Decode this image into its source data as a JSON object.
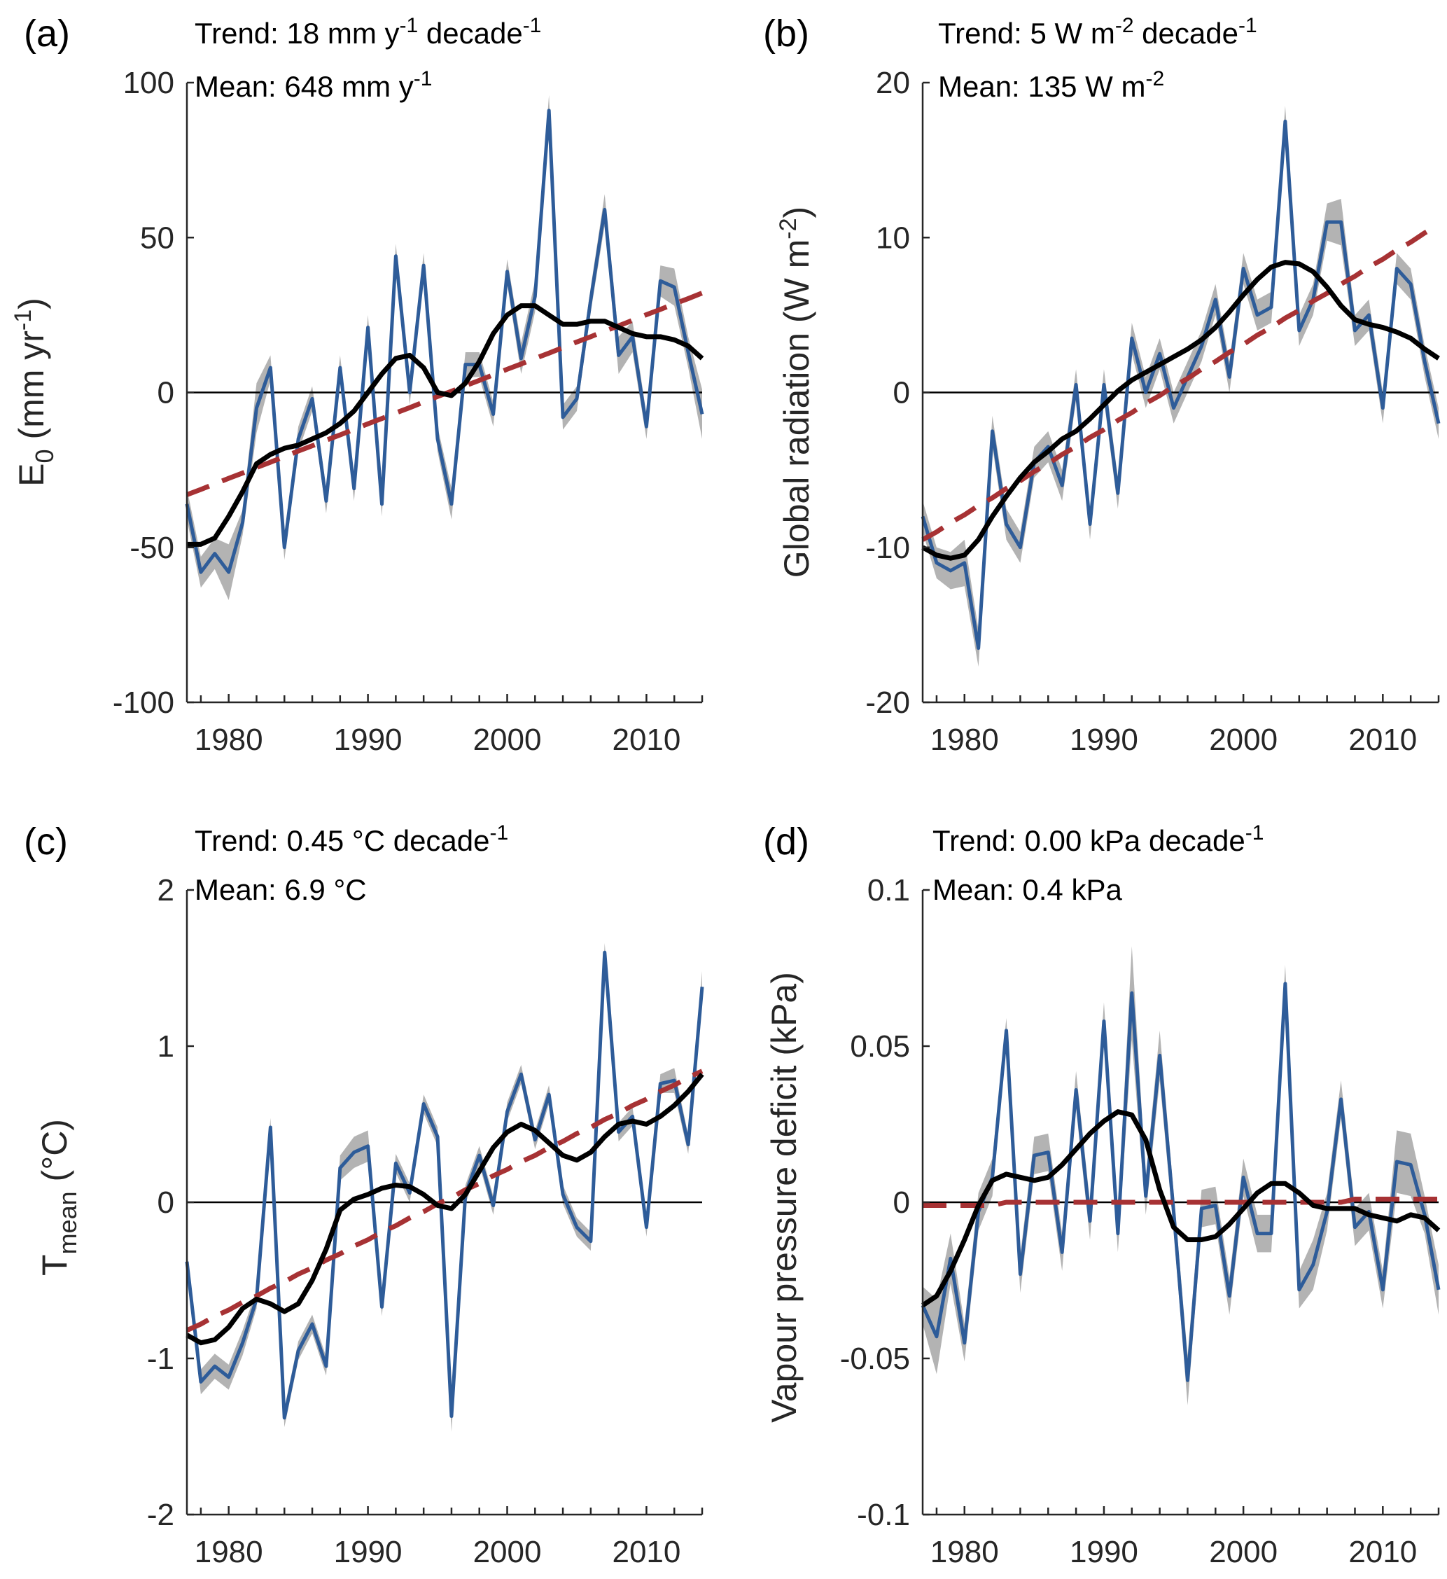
{
  "chart_data": [
    {
      "type": "line",
      "panel_label": "(a)",
      "trend_label": "Trend:",
      "trend_value": "18 mm y",
      "trend_sup1": "-1",
      "trend_mid": " decade",
      "trend_sup2": "-1",
      "mean_label": "Mean:",
      "mean_value": "648 mm y",
      "mean_sup": "-1",
      "ylabel_main": "E",
      "ylabel_sub": "0",
      "ylabel_rest": " (mm yr",
      "ylabel_sup": "-1",
      "ylabel_end": ")",
      "ylim": [
        -100,
        100
      ],
      "yticks": [
        -100,
        -50,
        0,
        50,
        100
      ],
      "ytick_labels": [
        "-100",
        "-50",
        "0",
        "50",
        "100"
      ],
      "xlim": [
        1977,
        2014
      ],
      "xticks": [
        1980,
        1990,
        2000,
        2010
      ],
      "xtick_labels": [
        "1980",
        "1990",
        "2000",
        "2010"
      ],
      "x": [
        1977,
        1978,
        1979,
        1980,
        1981,
        1982,
        1983,
        1984,
        1985,
        1986,
        1987,
        1988,
        1989,
        1990,
        1991,
        1992,
        1993,
        1994,
        1995,
        1996,
        1997,
        1998,
        1999,
        2000,
        2001,
        2002,
        2003,
        2004,
        2005,
        2006,
        2007,
        2008,
        2009,
        2010,
        2011,
        2012,
        2013,
        2014
      ],
      "series": [
        {
          "name": "annual anomaly",
          "values": [
            -36,
            -58,
            -52,
            -58,
            -42,
            -5,
            8,
            -50,
            -15,
            -2,
            -35,
            8,
            -31,
            21,
            -36,
            44,
            0,
            41,
            -15,
            -36,
            9,
            9,
            -7,
            39,
            11,
            31,
            91,
            -8,
            -2,
            30,
            59,
            12,
            18,
            -11,
            36,
            34,
            13,
            -7
          ]
        },
        {
          "name": "uncertainty band half-width",
          "values": [
            5,
            5,
            5,
            9,
            4,
            8,
            4,
            4,
            4,
            4,
            4,
            4,
            4,
            4,
            4,
            4,
            4,
            4,
            4,
            5,
            4,
            4,
            4,
            4,
            5,
            5,
            5,
            4,
            4,
            4,
            5,
            6,
            5,
            4,
            5,
            6,
            5,
            8
          ]
        },
        {
          "name": "smoothed",
          "values": [
            -49,
            -49,
            -47,
            -40,
            -32,
            -23,
            -20,
            -18,
            -17,
            -15,
            -13,
            -10,
            -6,
            0,
            6,
            11,
            12,
            8,
            0,
            -1,
            3,
            10,
            19,
            25,
            28,
            28,
            25,
            22,
            22,
            23,
            23,
            21,
            19,
            18,
            18,
            17,
            15,
            11
          ]
        },
        {
          "name": "linear trend",
          "values": [
            -33,
            -31.3,
            -29.5,
            -27.7,
            -26,
            -24.2,
            -22.5,
            -20.7,
            -18.9,
            -17.2,
            -15.4,
            -13.7,
            -11.9,
            -10.1,
            -8.4,
            -6.6,
            -4.9,
            -3.1,
            -1.3,
            0.4,
            2.2,
            3.9,
            5.7,
            7.5,
            9.2,
            11,
            12.7,
            14.5,
            16.3,
            18,
            19.8,
            21.5,
            23.3,
            25.1,
            26.8,
            28.6,
            30.3,
            32.1
          ]
        }
      ]
    },
    {
      "type": "line",
      "panel_label": "(b)",
      "trend_label": "Trend:",
      "trend_value": "5 W m",
      "trend_sup1": "-2",
      "trend_mid": " decade",
      "trend_sup2": "-1",
      "mean_label": "Mean:",
      "mean_value": "135 W m",
      "mean_sup": "-2",
      "ylabel_main": "Global radiation (W m",
      "ylabel_sub": "",
      "ylabel_rest": "",
      "ylabel_sup": "-2",
      "ylabel_end": ")",
      "ylim": [
        -20,
        20
      ],
      "yticks": [
        -20,
        -10,
        0,
        10,
        20
      ],
      "ytick_labels": [
        "-20",
        "-10",
        "0",
        "10",
        "20"
      ],
      "xlim": [
        1977,
        2014
      ],
      "xticks": [
        1980,
        1990,
        2000,
        2010
      ],
      "xtick_labels": [
        "1980",
        "1990",
        "2000",
        "2010"
      ],
      "x": [
        1977,
        1978,
        1979,
        1980,
        1981,
        1982,
        1983,
        1984,
        1985,
        1986,
        1987,
        1988,
        1989,
        1990,
        1991,
        1992,
        1993,
        1994,
        1995,
        1996,
        1997,
        1998,
        1999,
        2000,
        2001,
        2002,
        2003,
        2004,
        2005,
        2006,
        2007,
        2008,
        2009,
        2010,
        2011,
        2012,
        2013,
        2014
      ],
      "series": [
        {
          "name": "annual anomaly",
          "values": [
            -8,
            -11,
            -11.5,
            -11,
            -16.5,
            -2.5,
            -8.5,
            -10,
            -4.5,
            -3.5,
            -6,
            0.5,
            -8.5,
            0.5,
            -6.5,
            3.5,
            0,
            2.5,
            -1,
            1,
            3,
            6,
            1,
            8,
            5,
            5.5,
            17.5,
            4,
            6,
            11,
            11,
            4,
            5,
            -1,
            8,
            7,
            2,
            -2
          ]
        },
        {
          "name": "uncertainty band half-width",
          "values": [
            1,
            1,
            1.2,
            1.5,
            1.2,
            1,
            1,
            1,
            1,
            1,
            1,
            1,
            1,
            1,
            1,
            1,
            1,
            1,
            1,
            1,
            1,
            1,
            1,
            1,
            1,
            1,
            1,
            1,
            1,
            1.2,
            1.5,
            1,
            1,
            1,
            1,
            1,
            1,
            1
          ]
        },
        {
          "name": "smoothed",
          "values": [
            -10,
            -10.5,
            -10.7,
            -10.5,
            -9.5,
            -8,
            -6.7,
            -5.5,
            -4.5,
            -3.8,
            -3,
            -2.5,
            -1.7,
            -0.8,
            0.1,
            0.8,
            1.3,
            1.8,
            2.3,
            2.8,
            3.4,
            4.2,
            5.2,
            6.3,
            7.3,
            8.1,
            8.4,
            8.3,
            7.8,
            6.8,
            5.6,
            4.7,
            4.4,
            4.2,
            3.9,
            3.5,
            2.8,
            2.2
          ]
        },
        {
          "name": "linear trend",
          "values": [
            -9.5,
            -9,
            -8.4,
            -7.9,
            -7.3,
            -6.8,
            -6.2,
            -5.7,
            -5.1,
            -4.6,
            -4,
            -3.5,
            -2.9,
            -2.4,
            -1.8,
            -1.3,
            -0.7,
            -0.2,
            0.4,
            0.9,
            1.5,
            2,
            2.6,
            3.1,
            3.7,
            4.2,
            4.8,
            5.3,
            5.9,
            6.4,
            7,
            7.5,
            8.1,
            8.6,
            9.2,
            9.7,
            10.3,
            10.8
          ]
        }
      ]
    },
    {
      "type": "line",
      "panel_label": "(c)",
      "trend_label": "Trend:",
      "trend_value": "0.45 °C decade",
      "trend_sup1": "-1",
      "trend_mid": "",
      "trend_sup2": "",
      "mean_label": "Mean:",
      "mean_value": "6.9 °C",
      "mean_sup": "",
      "ylabel_main": "T",
      "ylabel_sub": "mean",
      "ylabel_rest": " (°C)",
      "ylabel_sup": "",
      "ylabel_end": "",
      "ylim": [
        -2,
        2
      ],
      "yticks": [
        -2,
        -1,
        0,
        1,
        2
      ],
      "ytick_labels": [
        "-2",
        "-1",
        "0",
        "1",
        "2"
      ],
      "xlim": [
        1977,
        2014
      ],
      "xticks": [
        1980,
        1990,
        2000,
        2010
      ],
      "xtick_labels": [
        "1980",
        "1990",
        "2000",
        "2010"
      ],
      "x": [
        1977,
        1978,
        1979,
        1980,
        1981,
        1982,
        1983,
        1984,
        1985,
        1986,
        1987,
        1988,
        1989,
        1990,
        1991,
        1992,
        1993,
        1994,
        1995,
        1996,
        1997,
        1998,
        1999,
        2000,
        2001,
        2002,
        2003,
        2004,
        2005,
        2006,
        2007,
        2008,
        2009,
        2010,
        2011,
        2012,
        2013,
        2014
      ],
      "series": [
        {
          "name": "annual anomaly",
          "values": [
            -0.38,
            -1.15,
            -1.05,
            -1.12,
            -0.9,
            -0.62,
            0.48,
            -1.38,
            -0.95,
            -0.78,
            -1.05,
            0.22,
            0.32,
            0.36,
            -0.67,
            0.25,
            0.06,
            0.63,
            0.42,
            -1.37,
            0.05,
            0.3,
            -0.02,
            0.58,
            0.82,
            0.4,
            0.69,
            0.05,
            -0.16,
            -0.25,
            1.6,
            0.45,
            0.55,
            -0.16,
            0.76,
            0.78,
            0.37,
            1.38
          ]
        },
        {
          "name": "uncertainty band half-width",
          "values": [
            0.06,
            0.08,
            0.08,
            0.08,
            0.08,
            0.06,
            0.06,
            0.06,
            0.06,
            0.06,
            0.06,
            0.08,
            0.1,
            0.1,
            0.06,
            0.06,
            0.06,
            0.06,
            0.06,
            0.1,
            0.06,
            0.06,
            0.06,
            0.06,
            0.06,
            0.06,
            0.06,
            0.06,
            0.06,
            0.06,
            0.06,
            0.06,
            0.06,
            0.06,
            0.06,
            0.08,
            0.06,
            0.1
          ]
        },
        {
          "name": "smoothed",
          "values": [
            -0.85,
            -0.9,
            -0.88,
            -0.8,
            -0.68,
            -0.62,
            -0.65,
            -0.7,
            -0.65,
            -0.5,
            -0.3,
            -0.05,
            0.02,
            0.05,
            0.09,
            0.11,
            0.1,
            0.05,
            -0.02,
            -0.04,
            0.05,
            0.2,
            0.35,
            0.45,
            0.5,
            0.46,
            0.38,
            0.3,
            0.27,
            0.32,
            0.42,
            0.5,
            0.52,
            0.5,
            0.55,
            0.62,
            0.71,
            0.82
          ]
        },
        {
          "name": "linear trend",
          "values": [
            -0.82,
            -0.78,
            -0.73,
            -0.69,
            -0.64,
            -0.6,
            -0.55,
            -0.51,
            -0.46,
            -0.42,
            -0.37,
            -0.33,
            -0.28,
            -0.24,
            -0.19,
            -0.15,
            -0.1,
            -0.06,
            -0.01,
            0.03,
            0.08,
            0.12,
            0.17,
            0.21,
            0.26,
            0.3,
            0.35,
            0.39,
            0.44,
            0.48,
            0.53,
            0.57,
            0.62,
            0.66,
            0.71,
            0.75,
            0.8,
            0.84
          ]
        }
      ]
    },
    {
      "type": "line",
      "panel_label": "(d)",
      "trend_label": "Trend:",
      "trend_value": "0.00 kPa decade",
      "trend_sup1": "-1",
      "trend_mid": "",
      "trend_sup2": "",
      "mean_label": "Mean:",
      "mean_value": "0.4 kPa",
      "mean_sup": "",
      "ylabel_main": "Vapour pressure deficit (kPa)",
      "ylabel_sub": "",
      "ylabel_rest": "",
      "ylabel_sup": "",
      "ylabel_end": "",
      "ylim": [
        -0.1,
        0.1
      ],
      "yticks": [
        -0.1,
        -0.05,
        0,
        0.05,
        0.1
      ],
      "ytick_labels": [
        "-0.1",
        "-0.05",
        "0",
        "0.05",
        "0.1"
      ],
      "xlim": [
        1977,
        2014
      ],
      "xticks": [
        1980,
        1990,
        2000,
        2010
      ],
      "xtick_labels": [
        "1980",
        "1990",
        "2000",
        "2010"
      ],
      "x": [
        1977,
        1978,
        1979,
        1980,
        1981,
        1982,
        1983,
        1984,
        1985,
        1986,
        1987,
        1988,
        1989,
        1990,
        1991,
        1992,
        1993,
        1994,
        1995,
        1996,
        1997,
        1998,
        1999,
        2000,
        2001,
        2002,
        2003,
        2004,
        2005,
        2006,
        2007,
        2008,
        2009,
        2010,
        2011,
        2012,
        2013,
        2014
      ],
      "series": [
        {
          "name": "annual anomaly",
          "values": [
            -0.033,
            -0.043,
            -0.018,
            -0.045,
            -0.003,
            0.008,
            0.055,
            -0.023,
            0.015,
            0.016,
            -0.016,
            0.036,
            -0.006,
            0.058,
            -0.01,
            0.067,
            0.002,
            0.047,
            -0.003,
            -0.057,
            -0.002,
            -0.001,
            -0.03,
            0.008,
            -0.01,
            -0.01,
            0.07,
            -0.028,
            -0.02,
            -0.003,
            0.033,
            -0.008,
            -0.003,
            -0.028,
            0.013,
            0.012,
            -0.004,
            -0.028
          ]
        },
        {
          "name": "uncertainty band half-width",
          "values": [
            0.006,
            0.012,
            0.008,
            0.006,
            0.006,
            0.006,
            0.004,
            0.006,
            0.006,
            0.006,
            0.006,
            0.006,
            0.006,
            0.006,
            0.006,
            0.015,
            0.006,
            0.008,
            0.006,
            0.008,
            0.006,
            0.006,
            0.006,
            0.006,
            0.006,
            0.006,
            0.006,
            0.006,
            0.008,
            0.006,
            0.006,
            0.006,
            0.006,
            0.006,
            0.01,
            0.01,
            0.006,
            0.008
          ]
        },
        {
          "name": "smoothed",
          "values": [
            -0.033,
            -0.03,
            -0.022,
            -0.012,
            -0.001,
            0.007,
            0.009,
            0.008,
            0.007,
            0.008,
            0.012,
            0.017,
            0.022,
            0.026,
            0.029,
            0.028,
            0.02,
            0.004,
            -0.008,
            -0.012,
            -0.012,
            -0.011,
            -0.007,
            -0.002,
            0.003,
            0.006,
            0.006,
            0.003,
            -0.001,
            -0.002,
            -0.002,
            -0.002,
            -0.004,
            -0.005,
            -0.006,
            -0.004,
            -0.005,
            -0.009
          ]
        },
        {
          "name": "linear trend",
          "values": [
            -0.001,
            -0.001,
            -0.001,
            -0.001,
            -0.001,
            -0.001,
            0,
            0,
            0,
            0,
            0,
            0,
            0,
            0,
            0,
            0,
            0,
            0,
            0,
            0,
            0,
            0,
            0,
            0,
            0,
            0,
            0,
            0,
            0,
            0,
            0,
            0.001,
            0.001,
            0.001,
            0.001,
            0.001,
            0.001,
            0.001
          ]
        }
      ]
    }
  ]
}
